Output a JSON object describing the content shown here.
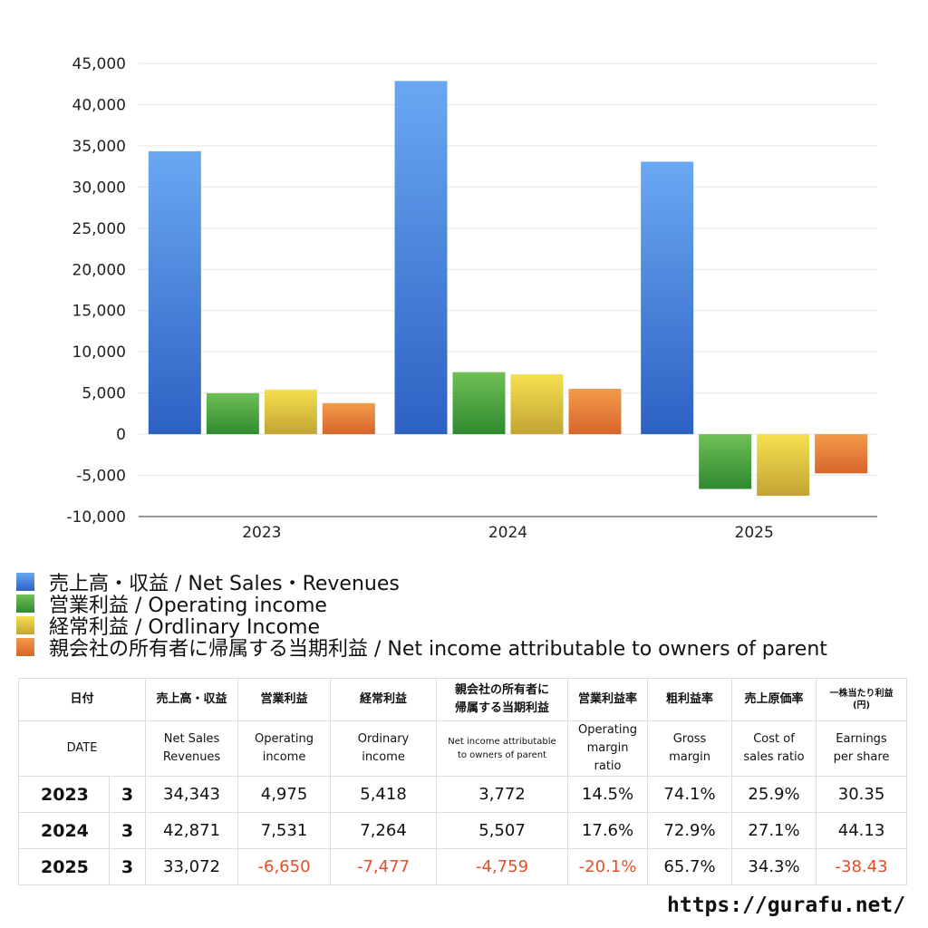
{
  "chart_data": {
    "type": "bar",
    "categories": [
      "2023",
      "2024",
      "2025"
    ],
    "series": [
      {
        "name": "売上高・収益 / Net Sales・Revenues",
        "values": [
          34343,
          42871,
          33072
        ],
        "color_top": "#6aa8f3",
        "color_bottom": "#2c61c2"
      },
      {
        "name": "営業利益 / Operating income",
        "values": [
          4975,
          7531,
          -6650
        ],
        "color_top": "#6fbf55",
        "color_bottom": "#2f8a2f"
      },
      {
        "name": "経常利益 / Ordlinary Income",
        "values": [
          5418,
          7264,
          -7477
        ],
        "color_top": "#f5e04f",
        "color_bottom": "#c3a434"
      },
      {
        "name": "親会社の所有者に帰属する当期利益 / Net income attributable to owners of parent",
        "values": [
          3772,
          5507,
          -4759
        ],
        "color_top": "#f39a4a",
        "color_bottom": "#d6662a"
      }
    ],
    "ylim": [
      -10000,
      45000
    ],
    "yticks": [
      "-10,000",
      "-5,000",
      "0",
      "5,000",
      "10,000",
      "15,000",
      "20,000",
      "25,000",
      "30,000",
      "35,000",
      "40,000",
      "45,000"
    ],
    "ytick_values": [
      -10000,
      -5000,
      0,
      5000,
      10000,
      15000,
      20000,
      25000,
      30000,
      35000,
      40000,
      45000
    ],
    "grid": true,
    "legend_position": "bottom-left"
  },
  "table": {
    "header_jp": {
      "date": "日付",
      "net_sales": "売上高・収益",
      "operating_income": "営業利益",
      "ordinary_income": "経常利益",
      "net_income_line1": "親会社の所有者に",
      "net_income_line2": "帰属する当期利益",
      "operating_margin": "営業利益率",
      "gross_margin": "粗利益率",
      "cost_ratio": "売上原価率",
      "eps_line1": "一株当たり利益",
      "eps_line2": "(円)"
    },
    "header_en": {
      "date": "DATE",
      "net_sales_line1": "Net Sales",
      "net_sales_line2": "Revenues",
      "operating_income_line1": "Operating",
      "operating_income_line2": "income",
      "ordinary_income_line1": "Ordinary",
      "ordinary_income_line2": "income",
      "net_income_line1": "Net income attributable",
      "net_income_line2": "to owners of parent",
      "operating_margin_line1": "Operating",
      "operating_margin_line2": "margin",
      "operating_margin_line3": "ratio",
      "gross_margin_line1": "Gross",
      "gross_margin_line2": "margin",
      "cost_ratio_line1": "Cost of",
      "cost_ratio_line2": "sales ratio",
      "eps_line1": "Earnings",
      "eps_line2": "per share"
    },
    "rows": [
      {
        "year": "2023",
        "month": "3",
        "net_sales": "34,343",
        "operating_income": "4,975",
        "ordinary_income": "5,418",
        "net_income": "3,772",
        "operating_margin": "14.5%",
        "gross_margin": "74.1%",
        "cost_ratio": "25.9%",
        "eps": "30.35"
      },
      {
        "year": "2024",
        "month": "3",
        "net_sales": "42,871",
        "operating_income": "7,531",
        "ordinary_income": "7,264",
        "net_income": "5,507",
        "operating_margin": "17.6%",
        "gross_margin": "72.9%",
        "cost_ratio": "27.1%",
        "eps": "44.13"
      },
      {
        "year": "2025",
        "month": "3",
        "net_sales": "33,072",
        "operating_income": "-6,650",
        "ordinary_income": "-7,477",
        "net_income": "-4,759",
        "operating_margin": "-20.1%",
        "gross_margin": "65.7%",
        "cost_ratio": "34.3%",
        "eps": "-38.43"
      }
    ],
    "negative_color": "#e0502a"
  },
  "footer": {
    "url": "https://gurafu.net/"
  }
}
